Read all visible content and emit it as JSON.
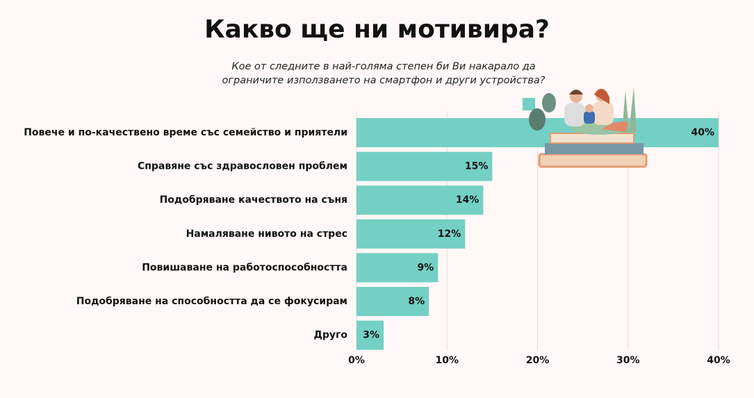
{
  "chart_data": {
    "type": "bar",
    "orientation": "horizontal",
    "title": "Какво ще ни мотивира?",
    "subtitle": "Кое от следните в най-голяма степен би Ви накарало да ограничите използването на смартфон и други устройства?",
    "categories": [
      "Повече и по-качествено време със семейство и приятели",
      "Справяне със здравословен проблем",
      "Подобряване качеството на съня",
      "Намаляване нивото на стрес",
      "Повишаване на работоспособността",
      "Подобряване на способността да се фокусирам",
      "Друго"
    ],
    "values": [
      40,
      15,
      14,
      12,
      9,
      8,
      3
    ],
    "value_labels": [
      "40%",
      "15%",
      "14%",
      "12%",
      "9%",
      "8%",
      "3%"
    ],
    "color": "#74d0c4",
    "xlim": [
      0,
      40
    ],
    "xticks": [
      {
        "value": 0,
        "label": "0%"
      },
      {
        "value": 10,
        "label": "10%"
      },
      {
        "value": 20,
        "label": "20%"
      },
      {
        "value": 30,
        "label": "30%"
      },
      {
        "value": 40,
        "label": "40%"
      }
    ],
    "grid": true
  }
}
